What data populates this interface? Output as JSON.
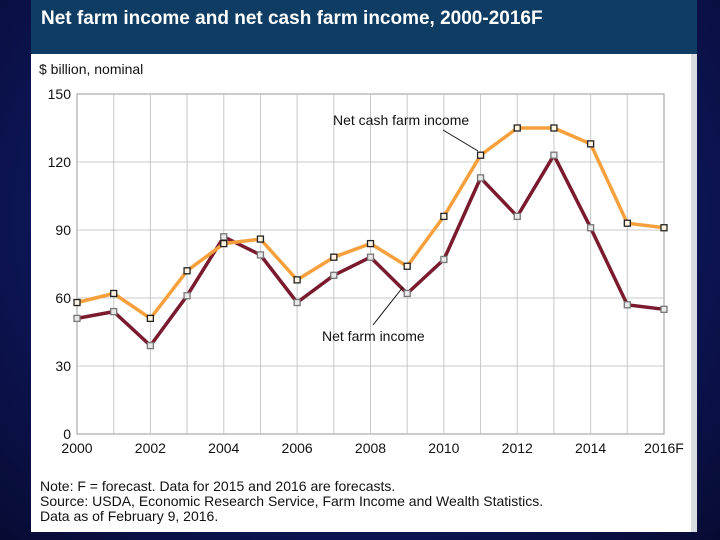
{
  "chart_data": {
    "type": "line",
    "title": "Net farm income and net cash farm income, 2000-2016F",
    "ylabel": "$ billion, nominal",
    "xlabel": "",
    "x": [
      "2000",
      "2001",
      "2002",
      "2003",
      "2004",
      "2005",
      "2006",
      "2007",
      "2008",
      "2009",
      "2010",
      "2011",
      "2012",
      "2013",
      "2014",
      "2015",
      "2016F"
    ],
    "x_tick_labels": [
      "2000",
      "2002",
      "2004",
      "2006",
      "2008",
      "2010",
      "2012",
      "2014",
      "2016F"
    ],
    "y_tick_labels": [
      "0",
      "30",
      "60",
      "90",
      "120",
      "150"
    ],
    "ylim": [
      0,
      150
    ],
    "grid": true,
    "series": [
      {
        "name": "Net cash farm income",
        "color": "#f5a03c",
        "values": [
          58,
          62,
          51,
          72,
          84,
          86,
          68,
          78,
          84,
          74,
          96,
          123,
          135,
          135,
          128,
          93,
          91
        ]
      },
      {
        "name": "Net farm income",
        "color": "#7a1a2e",
        "values": [
          51,
          54,
          39,
          61,
          87,
          79,
          58,
          70,
          78,
          62,
          77,
          113,
          96,
          123,
          91,
          57,
          55
        ]
      }
    ],
    "annotations": [
      "Net cash farm income",
      "Net farm income"
    ]
  },
  "notes": [
    "Note: F = forecast. Data for 2015 and 2016 are forecasts.",
    "Source: USDA, Economic Research Service, Farm Income and Wealth Statistics.",
    "Data as of February 9, 2016."
  ]
}
